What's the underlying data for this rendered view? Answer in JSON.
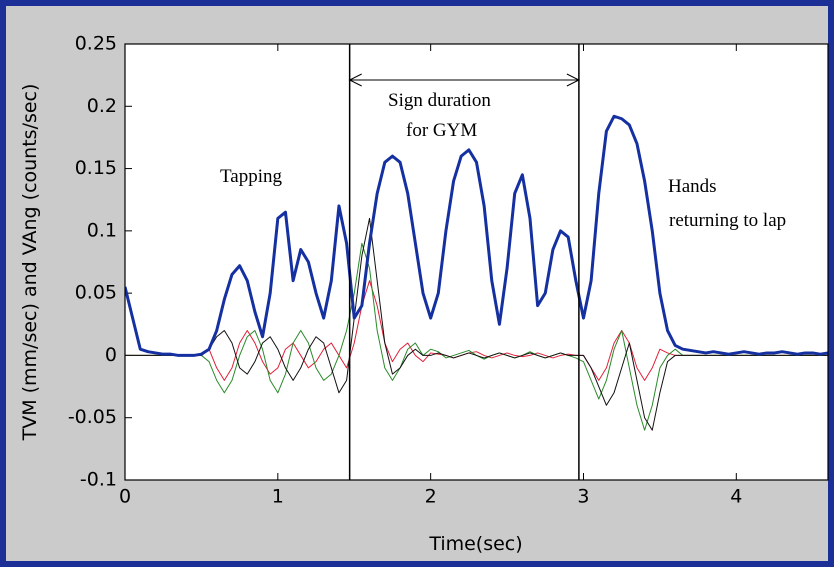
{
  "chart_data": {
    "type": "line",
    "xlabel": "Time(sec)",
    "ylabel": "TVM (mm/sec) and VAng (counts/sec)",
    "annotations": [
      "Tapping",
      "Sign duration",
      "for GYM",
      "Hands",
      "returning to lap"
    ],
    "vlines": [
      1.47,
      2.97
    ],
    "xlim": [
      0,
      4.6
    ],
    "ylim": [
      -0.1,
      0.25
    ],
    "xticks": [
      0,
      1,
      2,
      3,
      4
    ],
    "yticks": [
      -0.1,
      -0.05,
      0,
      0.05,
      0.1,
      0.15,
      0.2,
      0.25
    ],
    "x": [
      0,
      0.05,
      0.1,
      0.15,
      0.2,
      0.25,
      0.3,
      0.35,
      0.4,
      0.45,
      0.5,
      0.55,
      0.6,
      0.65,
      0.7,
      0.75,
      0.8,
      0.85,
      0.9,
      0.95,
      1.0,
      1.05,
      1.1,
      1.15,
      1.2,
      1.25,
      1.3,
      1.35,
      1.4,
      1.45,
      1.5,
      1.55,
      1.6,
      1.65,
      1.7,
      1.75,
      1.8,
      1.85,
      1.9,
      1.95,
      2.0,
      2.05,
      2.1,
      2.15,
      2.2,
      2.25,
      2.3,
      2.35,
      2.4,
      2.45,
      2.5,
      2.55,
      2.6,
      2.65,
      2.7,
      2.75,
      2.8,
      2.85,
      2.9,
      2.95,
      3.0,
      3.05,
      3.1,
      3.15,
      3.2,
      3.25,
      3.3,
      3.35,
      3.4,
      3.45,
      3.5,
      3.55,
      3.6,
      3.65,
      3.7,
      3.75,
      3.8,
      3.85,
      3.9,
      3.95,
      4.0,
      4.05,
      4.1,
      4.15,
      4.2,
      4.25,
      4.3,
      4.35,
      4.4,
      4.45,
      4.5,
      4.55,
      4.6
    ],
    "series": [
      {
        "color": "#e0203a",
        "width": 1,
        "values": [
          0,
          0,
          0,
          0,
          0,
          0,
          0,
          0,
          0,
          0,
          0,
          0.005,
          -0.01,
          -0.02,
          -0.01,
          0.01,
          0.02,
          0.01,
          -0.005,
          -0.015,
          -0.01,
          0.005,
          0.01,
          0,
          -0.01,
          -0.005,
          0.005,
          0.01,
          0,
          -0.01,
          0.01,
          0.04,
          0.06,
          0.04,
          0.01,
          -0.005,
          0.005,
          0.01,
          0,
          -0.005,
          0.002,
          0.001,
          0,
          -0.002,
          0,
          0.002,
          0.003,
          0,
          -0.002,
          0,
          0.002,
          0,
          -0.001,
          0,
          0.002,
          0,
          -0.002,
          0,
          0.001,
          0,
          0,
          -0.01,
          -0.02,
          -0.01,
          0.01,
          0.02,
          0.01,
          -0.01,
          -0.02,
          -0.01,
          0.005,
          0.002,
          0,
          0,
          0,
          0,
          0,
          0,
          0,
          0,
          0,
          0,
          0,
          0,
          0,
          0,
          0,
          0,
          0,
          0,
          0,
          0,
          0
        ]
      },
      {
        "color": "#2a8a2a",
        "width": 1,
        "values": [
          0,
          0,
          0,
          0,
          0,
          0,
          0,
          0,
          0,
          0,
          0,
          -0.005,
          -0.02,
          -0.03,
          -0.02,
          0,
          0.015,
          0.02,
          0.005,
          -0.02,
          -0.03,
          -0.015,
          0.01,
          0.02,
          0.01,
          -0.01,
          -0.02,
          -0.015,
          0,
          0.02,
          0.05,
          0.09,
          0.07,
          0.02,
          -0.01,
          -0.02,
          -0.01,
          0.005,
          0.01,
          0,
          0.005,
          0.003,
          -0.002,
          0,
          0.002,
          0.004,
          0,
          -0.003,
          0,
          0.002,
          0,
          -0.002,
          0,
          0.003,
          0,
          -0.002,
          0,
          0.002,
          0,
          -0.002,
          -0.005,
          -0.02,
          -0.035,
          -0.02,
          0.005,
          0.02,
          -0.01,
          -0.04,
          -0.06,
          -0.04,
          -0.01,
          0,
          0.005,
          0,
          0,
          0,
          0,
          0,
          0,
          0,
          0,
          0,
          0,
          0,
          0,
          0,
          0,
          0,
          0,
          0,
          0,
          0,
          0
        ]
      },
      {
        "color": "#111111",
        "width": 1,
        "values": [
          0,
          0,
          0,
          0,
          0,
          0,
          0,
          0,
          0,
          0,
          0,
          0.005,
          0.015,
          0.02,
          0.01,
          -0.01,
          -0.015,
          -0.005,
          0.01,
          0.015,
          0.005,
          -0.01,
          -0.02,
          -0.01,
          0.005,
          0.015,
          0.01,
          -0.01,
          -0.03,
          -0.02,
          0.03,
          0.08,
          0.11,
          0.06,
          0.01,
          -0.015,
          -0.01,
          0,
          0.005,
          0,
          0,
          0.002,
          0,
          -0.002,
          0,
          0.002,
          0,
          -0.002,
          0,
          0.002,
          0,
          -0.002,
          0,
          0.002,
          0,
          -0.002,
          0,
          0.002,
          0,
          0,
          0,
          -0.01,
          -0.025,
          -0.04,
          -0.03,
          -0.01,
          0.01,
          -0.02,
          -0.05,
          -0.06,
          -0.03,
          -0.005,
          0,
          0,
          0,
          0,
          0,
          0,
          0,
          0,
          0,
          0,
          0,
          0,
          0,
          0,
          0,
          0,
          0,
          0,
          0,
          0,
          0
        ]
      },
      {
        "color": "#1530a0",
        "width": 3,
        "values": [
          0.055,
          0.03,
          0.005,
          0.003,
          0.002,
          0.001,
          0.001,
          0,
          0,
          0,
          0.001,
          0.005,
          0.02,
          0.045,
          0.065,
          0.072,
          0.06,
          0.035,
          0.015,
          0.05,
          0.11,
          0.115,
          0.06,
          0.085,
          0.075,
          0.05,
          0.03,
          0.06,
          0.12,
          0.09,
          0.03,
          0.04,
          0.09,
          0.13,
          0.155,
          0.16,
          0.155,
          0.13,
          0.09,
          0.05,
          0.03,
          0.05,
          0.1,
          0.14,
          0.16,
          0.165,
          0.155,
          0.12,
          0.06,
          0.025,
          0.07,
          0.13,
          0.145,
          0.11,
          0.04,
          0.05,
          0.085,
          0.1,
          0.095,
          0.06,
          0.03,
          0.06,
          0.13,
          0.18,
          0.192,
          0.19,
          0.185,
          0.17,
          0.14,
          0.1,
          0.05,
          0.02,
          0.008,
          0.005,
          0.004,
          0.003,
          0.002,
          0.003,
          0.002,
          0.001,
          0.002,
          0.003,
          0.002,
          0.001,
          0.002,
          0.002,
          0.003,
          0.002,
          0.001,
          0.002,
          0.002,
          0.001,
          0.002
        ]
      }
    ]
  }
}
